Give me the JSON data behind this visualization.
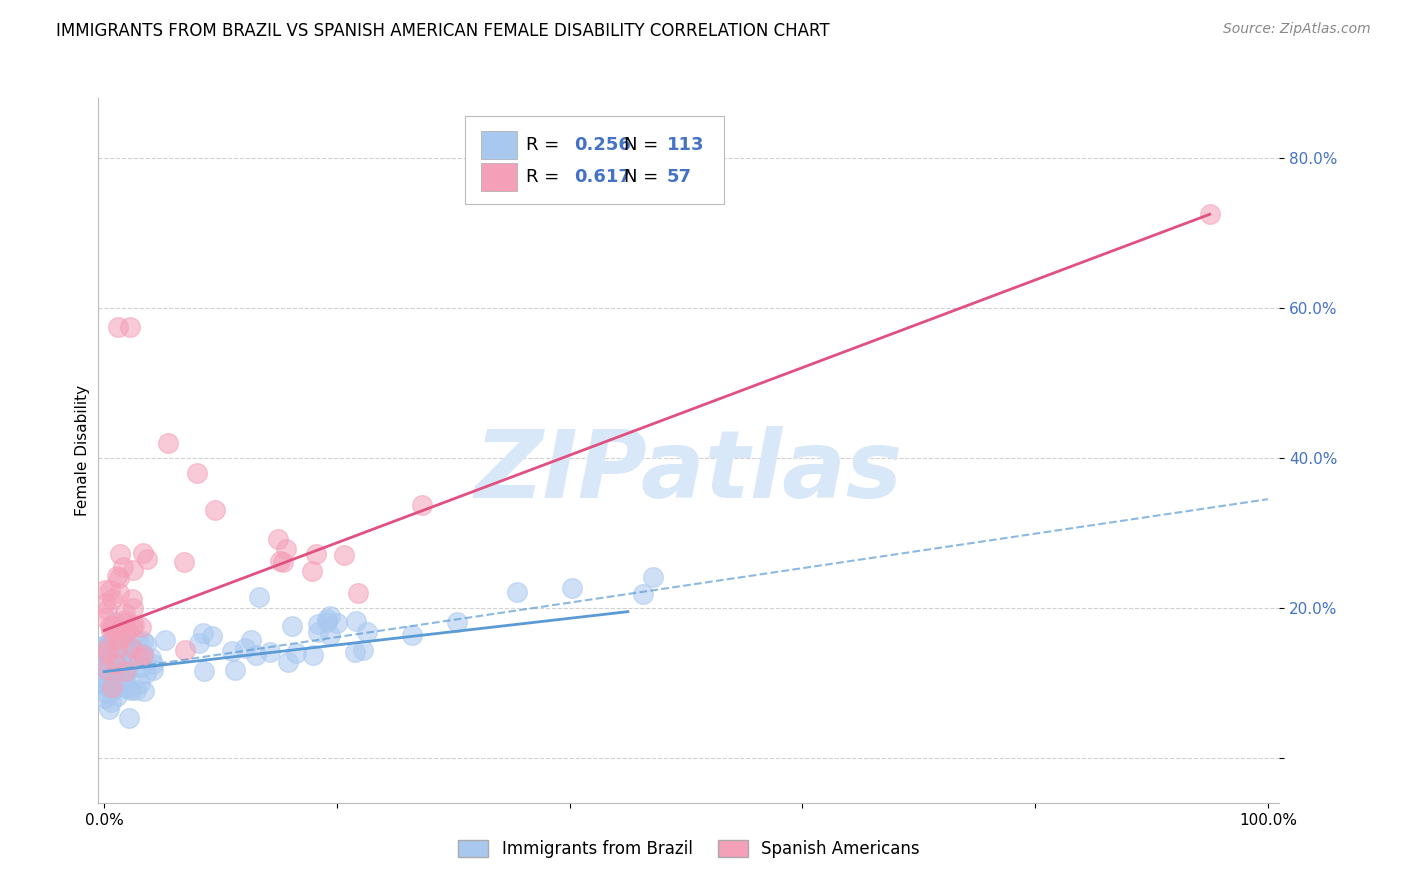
{
  "title": "IMMIGRANTS FROM BRAZIL VS SPANISH AMERICAN FEMALE DISABILITY CORRELATION CHART",
  "source": "Source: ZipAtlas.com",
  "ylabel": "Female Disability",
  "xlabel": "",
  "xlim": [
    -0.005,
    1.01
  ],
  "ylim": [
    -0.06,
    0.88
  ],
  "yticks": [
    0.0,
    0.2,
    0.4,
    0.6,
    0.8
  ],
  "ytick_labels": [
    "",
    "20.0%",
    "40.0%",
    "60.0%",
    "80.0%"
  ],
  "xticks": [
    0.0,
    0.2,
    0.4,
    0.6,
    0.8,
    1.0
  ],
  "xtick_labels": [
    "0.0%",
    "",
    "",
    "",
    "",
    "100.0%"
  ],
  "series": [
    {
      "name": "Immigrants from Brazil",
      "R": 0.256,
      "N": 113,
      "marker_color": "#A8C8F0",
      "line_color": "#5B9BD5",
      "line_style": "--",
      "solid_line_x": [
        0.0,
        0.45
      ],
      "solid_line_y": [
        0.115,
        0.195
      ],
      "dash_line_x": [
        0.0,
        1.0
      ],
      "dash_line_y": [
        0.115,
        0.345
      ]
    },
    {
      "name": "Spanish Americans",
      "R": 0.617,
      "N": 57,
      "marker_color": "#F4A0B8",
      "line_color": "#E05080",
      "line_style": "-",
      "trend_line_x": [
        0.0,
        0.95
      ],
      "trend_line_y": [
        0.17,
        0.725
      ]
    }
  ],
  "watermark_text": "ZIPatlas",
  "watermark_color": "#D8E8F8",
  "background_color": "#FFFFFF",
  "grid_color": "#CCCCCC",
  "title_fontsize": 12,
  "source_fontsize": 10,
  "axis_label_fontsize": 11,
  "tick_fontsize": 11,
  "legend_fontsize": 13,
  "blue_text_color": "#4472C4"
}
